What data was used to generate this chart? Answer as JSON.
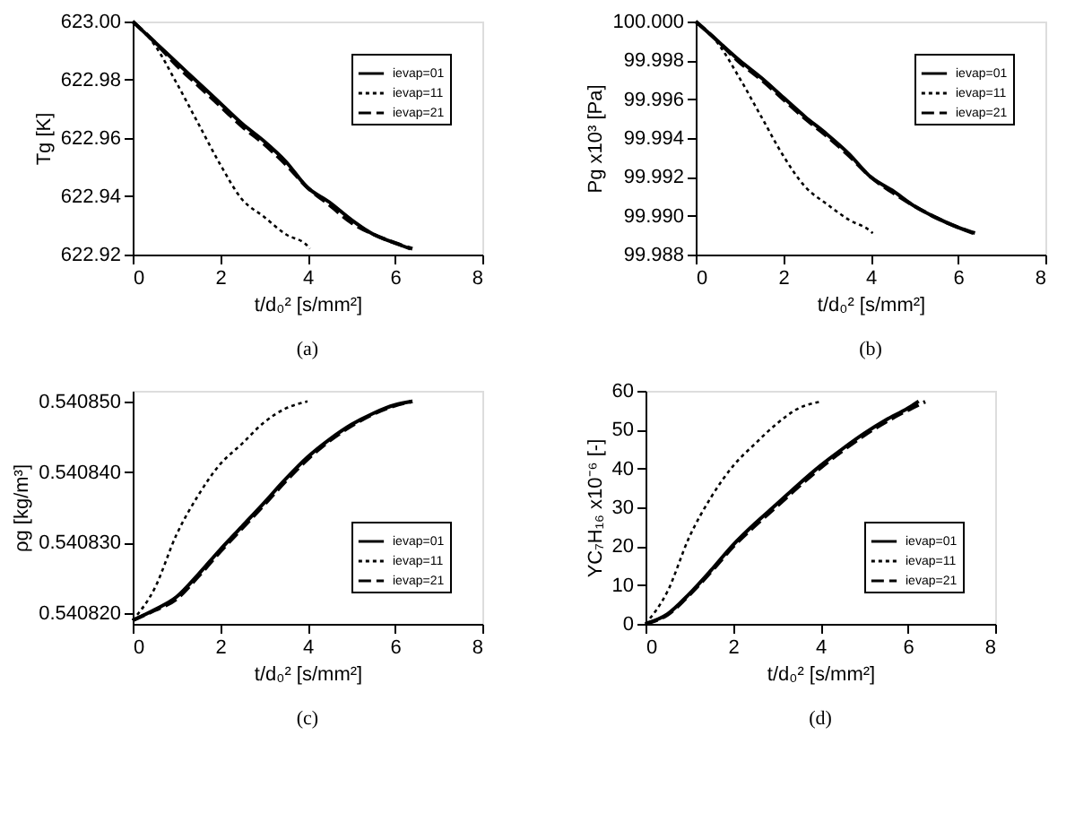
{
  "chart_data": [
    {
      "type": "line",
      "xlabel": "t/d₀² [s/mm²]",
      "ylabel": "Tg [K]",
      "annotations": [
        "(a)"
      ],
      "legend": "top right",
      "grid": false,
      "marker": "none",
      "xlim": [
        0,
        8
      ],
      "xticks": [
        0,
        2,
        4,
        6,
        8
      ],
      "ylim": [
        622.92,
        623.0
      ],
      "yticks": [
        {
          "value": 622.92,
          "label": "622.92"
        },
        {
          "value": 622.94,
          "label": "622.94"
        },
        {
          "value": 622.96,
          "label": "622.96"
        },
        {
          "value": 622.98,
          "label": "622.98"
        },
        {
          "value": 623.0,
          "label": "623.00"
        }
      ],
      "series": [
        {
          "name": "ievap=01",
          "color": "#000000",
          "line_style": "solid",
          "x": [
            0,
            0.5,
            1,
            1.5,
            2,
            2.5,
            3,
            3.5,
            4,
            4.5,
            5,
            5.5,
            6,
            6.35
          ],
          "values": [
            623.0,
            622.993,
            622.986,
            622.979,
            622.972,
            622.965,
            622.959,
            622.952,
            622.943,
            622.938,
            622.932,
            622.927,
            622.924,
            622.922
          ]
        },
        {
          "name": "ievap=11",
          "color": "#000000",
          "line_style": "dotted",
          "x": [
            0,
            0.5,
            1,
            1.5,
            2,
            2.5,
            3,
            3.5,
            4,
            4.05
          ],
          "values": [
            623.0,
            622.992,
            622.979,
            622.965,
            622.951,
            622.939,
            622.933,
            622.927,
            622.923,
            622.922
          ]
        },
        {
          "name": "ievap=21",
          "color": "#000000",
          "line_style": "dashed",
          "x": [
            0,
            0.5,
            1,
            1.5,
            2,
            2.5,
            3,
            3.5,
            4,
            4.5,
            5,
            5.5,
            6,
            6.4
          ],
          "values": [
            623.0,
            622.993,
            622.985,
            622.978,
            622.971,
            622.964,
            622.958,
            622.951,
            622.943,
            622.937,
            622.931,
            622.927,
            622.924,
            622.922
          ]
        }
      ]
    },
    {
      "type": "line",
      "xlabel": "t/d₀² [s/mm²]",
      "ylabel": "Pg x10³ [Pa]",
      "annotations": [
        "(b)"
      ],
      "legend": "top right",
      "grid": false,
      "marker": "none",
      "xlim": [
        0,
        8
      ],
      "xticks": [
        0,
        2,
        4,
        6,
        8
      ],
      "ylim": [
        99.988,
        100.0
      ],
      "yticks": [
        {
          "value": 99.988,
          "label": "99.988"
        },
        {
          "value": 99.99,
          "label": "99.990"
        },
        {
          "value": 99.992,
          "label": "99.992"
        },
        {
          "value": 99.994,
          "label": "99.994"
        },
        {
          "value": 99.996,
          "label": "99.996"
        },
        {
          "value": 99.998,
          "label": "99.998"
        },
        {
          "value": 100.0,
          "label": "100.000"
        }
      ],
      "series": [
        {
          "name": "ievap=01",
          "color": "#000000",
          "line_style": "solid",
          "x": [
            0,
            0.5,
            1,
            1.5,
            2,
            2.5,
            3,
            3.5,
            4,
            4.5,
            5,
            5.5,
            6,
            6.35
          ],
          "values": [
            100.0,
            99.999,
            99.998,
            99.9971,
            99.9961,
            99.9951,
            99.9942,
            99.9932,
            99.992,
            99.9913,
            99.9905,
            99.9899,
            99.9894,
            99.9891
          ]
        },
        {
          "name": "ievap=11",
          "color": "#000000",
          "line_style": "dotted",
          "x": [
            0,
            0.5,
            1,
            1.5,
            2,
            2.5,
            3,
            3.5,
            4,
            4.05
          ],
          "values": [
            100.0,
            99.9989,
            99.9971,
            99.9951,
            99.9931,
            99.9915,
            99.9906,
            99.9898,
            99.9892,
            99.9891
          ]
        },
        {
          "name": "ievap=21",
          "color": "#000000",
          "line_style": "dashed",
          "x": [
            0,
            0.5,
            1,
            1.5,
            2,
            2.5,
            3,
            3.5,
            4,
            4.5,
            5,
            5.5,
            6,
            6.4
          ],
          "values": [
            100.0,
            99.999,
            99.9979,
            99.997,
            99.996,
            99.995,
            99.9941,
            99.9931,
            99.992,
            99.9912,
            99.9905,
            99.9899,
            99.9894,
            99.9891
          ]
        }
      ]
    },
    {
      "type": "line",
      "xlabel": "t/d₀² [s/mm²]",
      "ylabel": "ρg [kg/m³]",
      "annotations": [
        "(c)"
      ],
      "legend": "bottom right",
      "grid": false,
      "marker": "none",
      "xlim": [
        0,
        8
      ],
      "xticks": [
        0,
        2,
        4,
        6,
        8
      ],
      "ylim": [
        0.5408185,
        0.5408515
      ],
      "yticks": [
        {
          "value": 0.54082,
          "label": "0.540820"
        },
        {
          "value": 0.54083,
          "label": "0.540830"
        },
        {
          "value": 0.54084,
          "label": "0.540840"
        },
        {
          "value": 0.54085,
          "label": "0.540850"
        }
      ],
      "series": [
        {
          "name": "ievap=01",
          "color": "#000000",
          "line_style": "solid",
          "x": [
            0,
            0.5,
            1,
            1.5,
            2,
            2.5,
            3,
            3.5,
            4,
            4.5,
            5,
            5.5,
            6,
            6.4
          ],
          "values": [
            0.540819,
            0.5408205,
            0.5408223,
            0.5408255,
            0.540829,
            0.5408323,
            0.5408356,
            0.540839,
            0.5408421,
            0.5408446,
            0.5408467,
            0.5408483,
            0.5408495,
            0.54085
          ]
        },
        {
          "name": "ievap=11",
          "color": "#000000",
          "line_style": "dotted",
          "x": [
            0,
            0.5,
            1,
            1.5,
            2,
            2.5,
            3,
            3.5,
            4
          ],
          "values": [
            0.540819,
            0.5408235,
            0.5408311,
            0.5408367,
            0.5408411,
            0.540844,
            0.540847,
            0.540849,
            0.54085
          ]
        },
        {
          "name": "ievap=21",
          "color": "#000000",
          "line_style": "dashed",
          "x": [
            0,
            0.5,
            1,
            1.5,
            2,
            2.5,
            3,
            3.5,
            4,
            4.5,
            5,
            5.5,
            6,
            6.4
          ],
          "values": [
            0.540819,
            0.5408204,
            0.540822,
            0.5408252,
            0.5408287,
            0.540832,
            0.5408353,
            0.5408387,
            0.5408418,
            0.5408444,
            0.5408465,
            0.5408482,
            0.5408494,
            0.54085
          ]
        }
      ]
    },
    {
      "type": "line",
      "xlabel": "t/d₀² [s/mm²]",
      "ylabel": "YC₇H₁₆ x10⁻⁶ [-]",
      "annotations": [
        "(d)"
      ],
      "legend": "bottom right",
      "grid": false,
      "marker": "none",
      "xlim": [
        0,
        8
      ],
      "xticks": [
        0,
        2,
        4,
        6,
        8
      ],
      "ylim": [
        0,
        60
      ],
      "yticks": [
        0,
        10,
        20,
        30,
        40,
        50,
        60
      ],
      "series": [
        {
          "name": "ievap=01",
          "color": "#000000",
          "line_style": "solid",
          "x": [
            0,
            0.5,
            1,
            1.5,
            2,
            2.5,
            3,
            3.5,
            4,
            4.5,
            5,
            5.5,
            6,
            6.25
          ],
          "values": [
            0,
            2.5,
            7.7,
            13.8,
            20.3,
            25.8,
            30.8,
            35.9,
            40.7,
            45.0,
            49.0,
            52.5,
            55.5,
            57.3
          ]
        },
        {
          "name": "ievap=11",
          "color": "#000000",
          "line_style": "dotted",
          "x": [
            0,
            0.5,
            1,
            1.5,
            2,
            2.5,
            3,
            3.5,
            4
          ],
          "values": [
            0,
            8.3,
            22.3,
            32.6,
            40.6,
            46.3,
            51.5,
            55.5,
            57.2
          ]
        },
        {
          "name": "ievap=21",
          "color": "#000000",
          "line_style": "dashed",
          "x": [
            0,
            0.5,
            1,
            1.5,
            2,
            2.5,
            3,
            3.5,
            4,
            4.5,
            5,
            5.5,
            6,
            6.4
          ],
          "values": [
            0,
            2.3,
            7.4,
            13.4,
            19.8,
            25.2,
            30.2,
            35.3,
            40.1,
            44.5,
            48.5,
            52.0,
            55.0,
            57.2
          ]
        }
      ]
    }
  ]
}
